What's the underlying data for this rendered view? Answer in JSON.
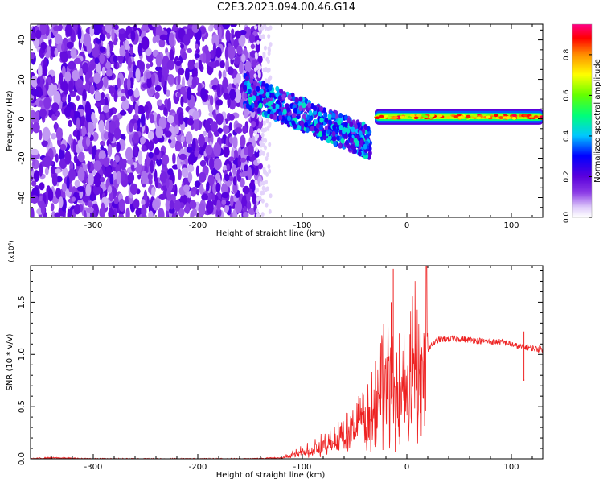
{
  "title": "C2E3.2023.094.00.46.G14",
  "chart_data": [
    {
      "type": "heatmap",
      "xlabel": "Height of straight line (km)",
      "ylabel": "Frequency (Hz)",
      "xlim": [
        -360,
        130
      ],
      "ylim": [
        -50,
        48
      ],
      "x_ticks": [
        -300,
        -200,
        -100,
        0,
        100
      ],
      "x_tick_labels": [
        "-300",
        "-200",
        "-100",
        "0",
        "100"
      ],
      "y_ticks": [
        -40,
        -20,
        0,
        20,
        40
      ],
      "y_tick_labels": [
        "-40",
        "-20",
        "0",
        "20",
        "40"
      ],
      "colorbar": {
        "label": "Normalized spectral amplitude",
        "range": [
          0.0,
          0.95
        ],
        "ticks": [
          0.0,
          0.2,
          0.4,
          0.6,
          0.8
        ],
        "tick_labels": [
          "0.0",
          "0.2",
          "0.4",
          "0.6",
          "0.8"
        ],
        "colors": [
          "#ffffff",
          "#8800ee",
          "#0000ff",
          "#00ffff",
          "#00ff00",
          "#ffff00",
          "#ff8800",
          "#ff0000",
          "#ff0088"
        ]
      },
      "regions": [
        {
          "x_range": [
            -360,
            -140
          ],
          "freq_range": [
            -50,
            48
          ],
          "level": "low (~0.1–0.2)",
          "pattern": "scattered noise"
        },
        {
          "x_range": [
            -155,
            -35
          ],
          "freq_center_start": 14,
          "freq_center_end": -12,
          "level": "0.2–0.5",
          "pattern": "descending band"
        },
        {
          "x_range": [
            -30,
            130
          ],
          "freq_center": 1,
          "bandwidth": 6,
          "level": "0.5–0.9",
          "pattern": "narrow horizontal band"
        }
      ]
    },
    {
      "type": "line",
      "xlabel": "Height of straight line (km)",
      "ylabel": "SNR (10 * v/v)",
      "scale_label": "(x10⁴)",
      "xlim": [
        -360,
        130
      ],
      "ylim": [
        0,
        1.85
      ],
      "x_ticks": [
        -300,
        -200,
        -100,
        0,
        100
      ],
      "x_tick_labels": [
        "-300",
        "-200",
        "-100",
        "0",
        "100"
      ],
      "y_ticks": [
        0.0,
        0.5,
        1.0,
        1.5
      ],
      "y_tick_labels": [
        "0.0",
        "0.5",
        "1.0",
        "1.5"
      ],
      "color": "#ee2222",
      "series": [
        {
          "x": [
            -360,
            -340,
            -300,
            -250,
            -200,
            -150,
            -120,
            -110,
            -100,
            -90,
            -80,
            -70,
            -60,
            -50,
            -40,
            -30,
            -25,
            -20,
            -15,
            -13,
            -10,
            -5,
            0,
            5,
            10,
            15,
            20,
            25,
            30,
            40,
            50,
            60,
            70,
            80,
            90,
            100,
            105,
            110,
            115,
            120,
            125,
            130
          ],
          "y": [
            0.0,
            0.01,
            0.0,
            0.0,
            0.0,
            0.0,
            0.01,
            0.04,
            0.07,
            0.1,
            0.14,
            0.18,
            0.22,
            0.28,
            0.38,
            0.5,
            0.6,
            0.75,
            0.82,
            0.85,
            0.55,
            0.72,
            0.8,
            0.88,
            0.95,
            1.0,
            1.05,
            1.1,
            1.14,
            1.15,
            1.15,
            1.14,
            1.13,
            1.12,
            1.12,
            1.1,
            1.08,
            1.07,
            1.07,
            1.06,
            1.05,
            1.05
          ]
        }
      ],
      "spikes": [
        {
          "x": -13,
          "y": 1.82
        },
        {
          "x": -15,
          "y": 1.5
        },
        {
          "x": -25,
          "y": 0.97
        },
        {
          "x": 112,
          "y": 1.22
        },
        {
          "x": 112,
          "y": 0.76
        }
      ]
    }
  ]
}
